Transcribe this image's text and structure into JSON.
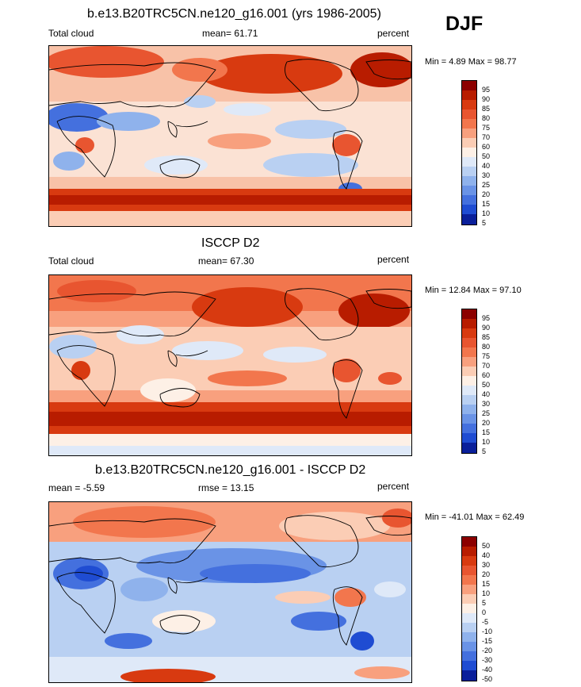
{
  "season": "DJF",
  "panels": [
    {
      "title": "b.e13.B20TRC5CN.ne120_g16.001 (yrs 1986-2005)",
      "left_label": "Total cloud",
      "center_label": "mean=  61.71",
      "right_label": "percent",
      "minmax": "Min =   4.89 Max =  98.77",
      "levels": [
        "95",
        "90",
        "85",
        "80",
        "75",
        "70",
        "60",
        "50",
        "40",
        "30",
        "25",
        "20",
        "15",
        "10",
        "5"
      ],
      "colors": [
        "#8c0000",
        "#b81c00",
        "#d83a10",
        "#e85530",
        "#f2764d",
        "#f8a07e",
        "#fbcdb5",
        "#fdf0e6",
        "#dfe9f8",
        "#b9d0f2",
        "#8fb2ec",
        "#6a93e6",
        "#4470de",
        "#1f4cd2",
        "#0a1f9a"
      ]
    },
    {
      "title": "ISCCP D2",
      "left_label": "Total cloud",
      "center_label": "mean=  67.30",
      "right_label": "percent",
      "minmax": "Min =  12.84 Max =  97.10",
      "levels": [
        "95",
        "90",
        "85",
        "80",
        "75",
        "70",
        "60",
        "50",
        "40",
        "30",
        "25",
        "20",
        "15",
        "10",
        "5"
      ],
      "colors": [
        "#8c0000",
        "#b81c00",
        "#d83a10",
        "#e85530",
        "#f2764d",
        "#f8a07e",
        "#fbcdb5",
        "#fdf0e6",
        "#dfe9f8",
        "#b9d0f2",
        "#8fb2ec",
        "#6a93e6",
        "#4470de",
        "#1f4cd2",
        "#0a1f9a"
      ]
    },
    {
      "title": "b.e13.B20TRC5CN.ne120_g16.001 - ISCCP D2",
      "left_label": "mean =  -5.59",
      "center_label": "rmse =  13.15",
      "right_label": "percent",
      "minmax": "Min = -41.01 Max =  62.49",
      "levels": [
        "50",
        "40",
        "30",
        "20",
        "15",
        "10",
        "5",
        "0",
        "-5",
        "-10",
        "-15",
        "-20",
        "-30",
        "-40",
        "-50"
      ],
      "colors": [
        "#8c0000",
        "#b81c00",
        "#d83a10",
        "#e85530",
        "#f2764d",
        "#f8a07e",
        "#fbcdb5",
        "#fdf0e6",
        "#dfe9f8",
        "#b9d0f2",
        "#8fb2ec",
        "#6a93e6",
        "#4470de",
        "#1f4cd2",
        "#0a1f9a"
      ]
    }
  ]
}
